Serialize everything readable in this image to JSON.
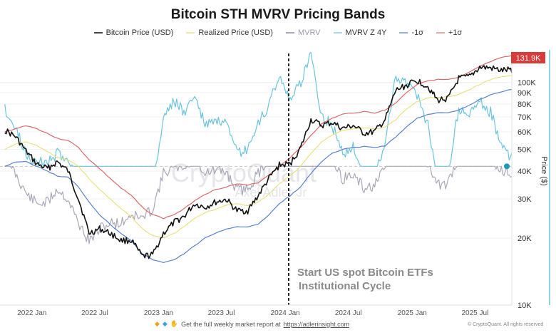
{
  "chart_data": {
    "type": "line",
    "title": "Bitcoin STH MVRV Pricing Bands",
    "xlabel": "",
    "ylabel": "Price ($)",
    "yscale": "log",
    "ylim": [
      10000,
      140000
    ],
    "xlim": [
      "2021-10-01",
      "2025-10-15"
    ],
    "x_ticks": [
      "2022 Jan",
      "2022 Jul",
      "2023 Jan",
      "2023 Jul",
      "2024 Jan",
      "2024 Jul",
      "2025 Jan",
      "2025 Jul"
    ],
    "x_tick_dates": [
      "2022-01-01",
      "2022-07-01",
      "2023-01-01",
      "2023-07-01",
      "2024-01-01",
      "2024-07-01",
      "2025-01-01",
      "2025-07-01"
    ],
    "y_ticks": [
      10000,
      20000,
      30000,
      40000,
      50000,
      60000,
      70000,
      80000,
      90000,
      100000
    ],
    "y_tick_labels": [
      "10K",
      "20K",
      "30K",
      "40K",
      "50K",
      "60K",
      "70K",
      "80K",
      "90K",
      "100K"
    ],
    "current_value_label": "131.9K",
    "current_value": 131900,
    "reference_line_y": 42000,
    "grid": true,
    "legend_placement": "top-center",
    "legend": [
      {
        "name": "Bitcoin Price (USD)",
        "color": "#111111"
      },
      {
        "name": "Realized Price (USD)",
        "color": "#e8dc70"
      },
      {
        "name": "MVRV",
        "color": "#a8a8b8"
      },
      {
        "name": "MVRV Z 4Y",
        "color": "#6cc4dc"
      },
      {
        "name": "-1σ",
        "color": "#5a80d0"
      },
      {
        "name": "+1σ",
        "color": "#d86a6a"
      }
    ],
    "annotation": {
      "date": "2024-01-11",
      "text_line1": "Start US spot Bitcoin ETFs",
      "text_line2": "Institutional Cycle"
    },
    "x_months": [
      "2021-10",
      "2021-11",
      "2021-12",
      "2022-01",
      "2022-02",
      "2022-03",
      "2022-04",
      "2022-05",
      "2022-06",
      "2022-07",
      "2022-08",
      "2022-09",
      "2022-10",
      "2022-11",
      "2022-12",
      "2023-01",
      "2023-02",
      "2023-03",
      "2023-04",
      "2023-05",
      "2023-06",
      "2023-07",
      "2023-08",
      "2023-09",
      "2023-10",
      "2023-11",
      "2023-12",
      "2024-01",
      "2024-02",
      "2024-03",
      "2024-04",
      "2024-05",
      "2024-06",
      "2024-07",
      "2024-08",
      "2024-09",
      "2024-10",
      "2024-11",
      "2024-12",
      "2025-01",
      "2025-02",
      "2025-03",
      "2025-04",
      "2025-05",
      "2025-06",
      "2025-07",
      "2025-08",
      "2025-09",
      "2025-10"
    ],
    "series": [
      {
        "name": "Bitcoin Price (USD)",
        "color": "#111111",
        "values": [
          61000,
          57000,
          49000,
          43000,
          41000,
          44000,
          40000,
          30000,
          21000,
          22000,
          21000,
          19500,
          19500,
          16500,
          16800,
          21000,
          23500,
          25000,
          28500,
          27500,
          29000,
          29800,
          26500,
          26500,
          31000,
          37000,
          42500,
          43000,
          51000,
          68000,
          64000,
          66000,
          62000,
          64000,
          59000,
          60000,
          68000,
          92000,
          97000,
          102000,
          96000,
          83000,
          85000,
          104000,
          106000,
          117000,
          116000,
          113000,
          114000
        ]
      },
      {
        "name": "Realized Price (USD)",
        "color": "#e8dc70",
        "values": [
          50000,
          53000,
          54000,
          52000,
          49000,
          46000,
          45000,
          42000,
          37000,
          33000,
          30000,
          27000,
          25000,
          22000,
          20500,
          20000,
          21000,
          22500,
          24500,
          26000,
          27000,
          28000,
          28500,
          28000,
          29000,
          31500,
          35000,
          38000,
          42000,
          48000,
          54000,
          58000,
          61000,
          62000,
          62500,
          62000,
          63000,
          68000,
          76000,
          82000,
          85000,
          86000,
          86000,
          88000,
          93000,
          98000,
          103000,
          106000,
          108000
        ]
      },
      {
        "name": "MVRV",
        "color": "#a8a8b8",
        "values": [
          1.2,
          1.05,
          0.92,
          0.85,
          0.86,
          0.95,
          0.88,
          0.72,
          0.6,
          0.68,
          0.72,
          0.72,
          0.78,
          0.75,
          0.82,
          1.05,
          1.1,
          1.1,
          1.15,
          1.06,
          1.07,
          1.06,
          0.94,
          0.95,
          1.05,
          1.16,
          1.22,
          1.15,
          1.2,
          1.38,
          1.18,
          1.12,
          1.02,
          1.04,
          0.95,
          0.97,
          1.08,
          1.32,
          1.28,
          1.24,
          1.13,
          0.97,
          0.99,
          1.17,
          1.14,
          1.19,
          1.14,
          1.07,
          1.06
        ]
      },
      {
        "name": "MVRV Z 4Y",
        "color": "#6cc4dc",
        "values": [
          1.4,
          0.9,
          0.3,
          0.1,
          0.1,
          0.3,
          0.2,
          -0.5,
          -1.5,
          -1.2,
          -0.9,
          -0.9,
          -0.5,
          -1.0,
          -0.6,
          1.2,
          1.6,
          1.3,
          1.7,
          1.0,
          1.1,
          1.0,
          0.3,
          0.4,
          1.0,
          1.5,
          2.2,
          1.6,
          2.0,
          2.8,
          1.2,
          1.0,
          0.3,
          0.5,
          -0.4,
          -0.3,
          0.6,
          2.2,
          2.0,
          1.7,
          1.0,
          -0.3,
          -0.2,
          1.4,
          1.2,
          1.6,
          1.3,
          0.5,
          0.2
        ]
      },
      {
        "name": "-1σ",
        "color": "#5a80d0",
        "values": [
          42000,
          44000,
          44000,
          42000,
          40000,
          38000,
          37500,
          34000,
          29000,
          25500,
          23000,
          21000,
          19500,
          17000,
          16000,
          15500,
          16000,
          17000,
          18500,
          20000,
          21000,
          22000,
          22500,
          22500,
          23000,
          25500,
          28500,
          31000,
          34000,
          39000,
          44000,
          48000,
          50000,
          51000,
          51500,
          51000,
          52000,
          57000,
          63000,
          69000,
          72000,
          73000,
          73000,
          75000,
          79000,
          84000,
          88000,
          91000,
          93000
        ]
      },
      {
        "name": "+1σ",
        "color": "#d86a6a",
        "values": [
          60000,
          62000,
          64000,
          62000,
          59000,
          56000,
          55000,
          51000,
          45000,
          41000,
          37000,
          33500,
          31000,
          27500,
          25500,
          24500,
          25500,
          27000,
          29500,
          31500,
          33000,
          34000,
          35000,
          34500,
          35500,
          38500,
          42000,
          46000,
          51000,
          58000,
          65000,
          69000,
          72000,
          73000,
          74000,
          73000,
          75000,
          81000,
          90000,
          98000,
          102000,
          103000,
          103000,
          105000,
          111000,
          118000,
          124000,
          129000,
          131900
        ]
      }
    ]
  },
  "watermark": {
    "brand": "CryptoQuant",
    "author": "Axel Adler Jr"
  },
  "footer": {
    "icons": [
      "orange-diamond",
      "blue-diamond",
      "raised-hands"
    ],
    "text": "Get the full weekly market report at",
    "link": "https://adlerinsight.com",
    "copyright": "© CryptoQuant. All rights reserved"
  }
}
